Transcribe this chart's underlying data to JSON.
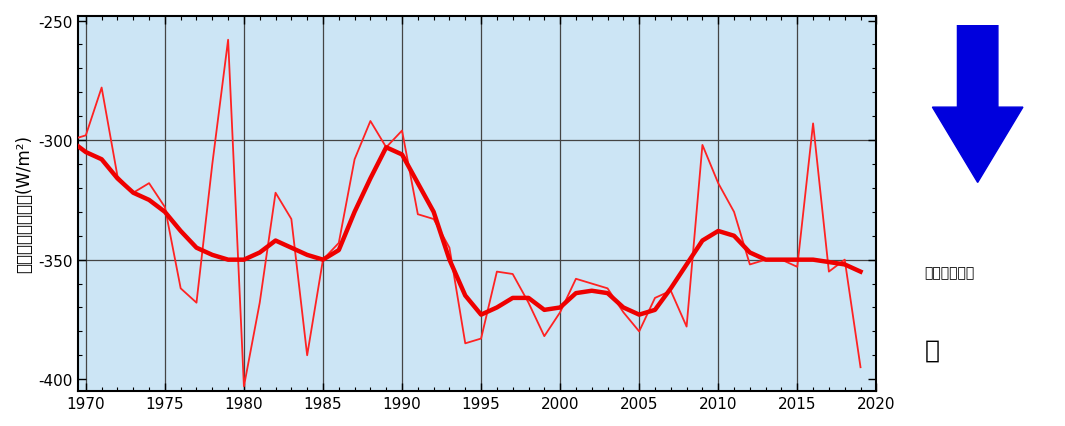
{
  "title": "",
  "ylabel": "海面熱フラックス(W/m²)",
  "xlabel": "",
  "xlim": [
    1969.5,
    2020
  ],
  "ylim": [
    -405,
    -248
  ],
  "yticks": [
    -400,
    -350,
    -300,
    -250
  ],
  "xticks": [
    1970,
    1975,
    1980,
    1985,
    1990,
    1995,
    2000,
    2005,
    2010,
    2015,
    2020
  ],
  "background_color": "#cce5f5",
  "grid_color": "#444444",
  "annotation_text1": "冬季海面冷却",
  "annotation_text2": "強",
  "years": [
    1969,
    1970,
    1971,
    1972,
    1973,
    1974,
    1975,
    1976,
    1977,
    1978,
    1979,
    1980,
    1981,
    1982,
    1983,
    1984,
    1985,
    1986,
    1987,
    1988,
    1989,
    1990,
    1991,
    1992,
    1993,
    1994,
    1995,
    1996,
    1997,
    1998,
    1999,
    2000,
    2001,
    2002,
    2003,
    2004,
    2005,
    2006,
    2007,
    2008,
    2009,
    2010,
    2011,
    2012,
    2013,
    2014,
    2015,
    2016,
    2017,
    2018,
    2019
  ],
  "thin_values": [
    -300,
    -298,
    -278,
    -315,
    -322,
    -318,
    -328,
    -362,
    -368,
    -310,
    -258,
    -403,
    -368,
    -322,
    -333,
    -390,
    -350,
    -343,
    -308,
    -292,
    -303,
    -296,
    -331,
    -333,
    -345,
    -385,
    -383,
    -355,
    -356,
    -368,
    -382,
    -372,
    -358,
    -360,
    -362,
    -372,
    -380,
    -366,
    -363,
    -378,
    -302,
    -318,
    -330,
    -352,
    -350,
    -350,
    -353,
    -293,
    -355,
    -350,
    -395
  ],
  "thick_values": [
    -300,
    -305,
    -308,
    -316,
    -322,
    -325,
    -330,
    -338,
    -345,
    -348,
    -350,
    -350,
    -347,
    -342,
    -345,
    -348,
    -350,
    -346,
    -330,
    -316,
    -303,
    -306,
    -318,
    -330,
    -350,
    -365,
    -373,
    -370,
    -366,
    -366,
    -371,
    -370,
    -364,
    -363,
    -364,
    -370,
    -373,
    -371,
    -362,
    -352,
    -342,
    -338,
    -340,
    -347,
    -350,
    -350,
    -350,
    -350,
    -351,
    -352,
    -355
  ],
  "thin_color": "#ff2222",
  "thick_color": "#ee0000",
  "thin_lw": 1.3,
  "thick_lw": 3.2
}
